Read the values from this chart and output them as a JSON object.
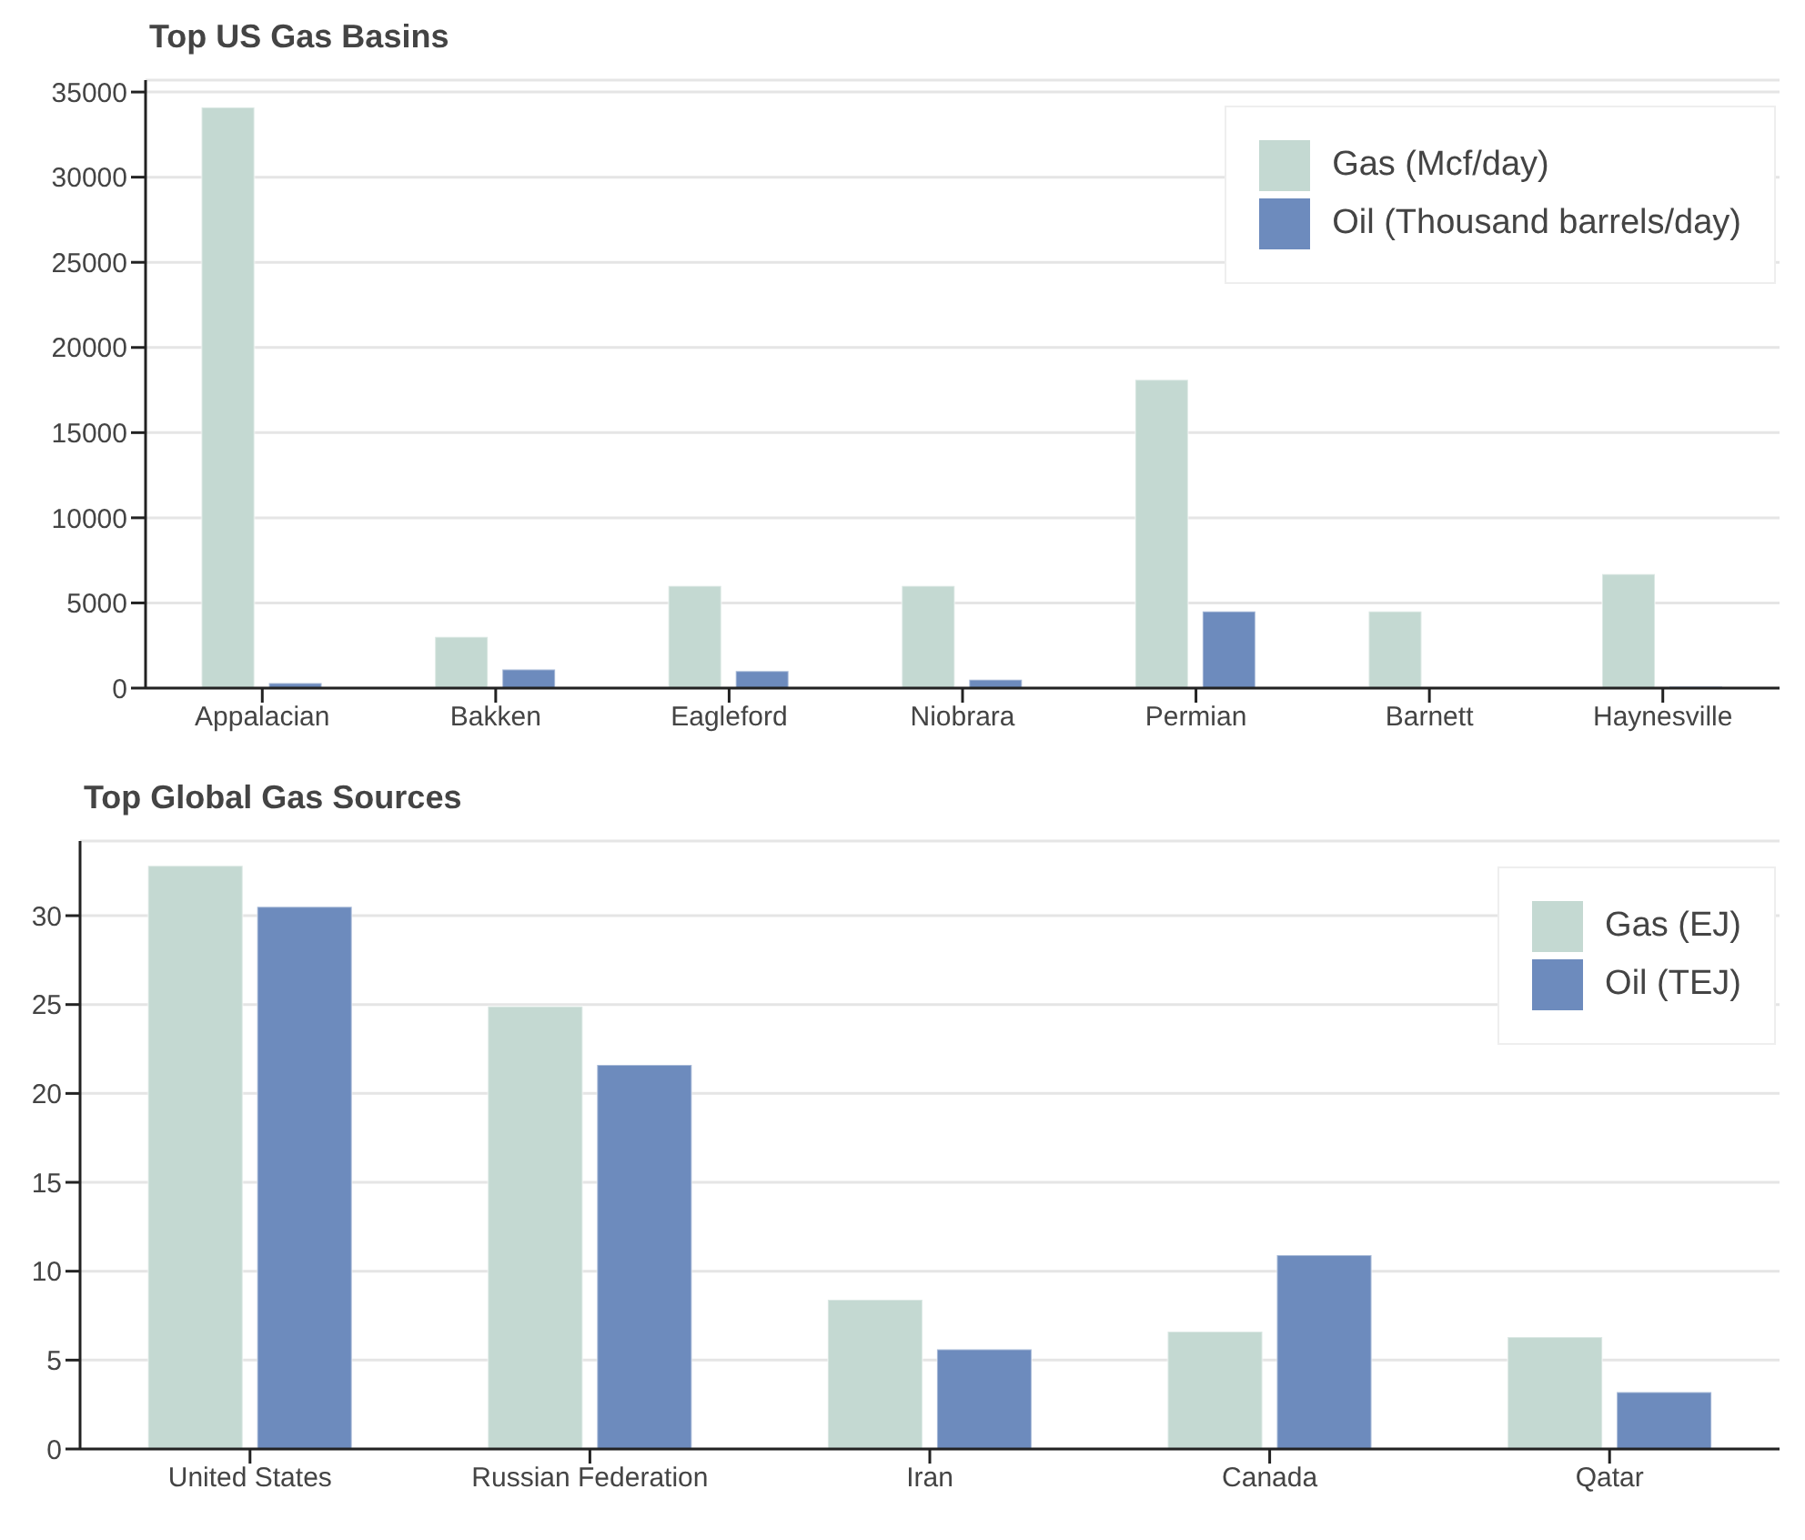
{
  "chart_data": [
    {
      "type": "bar",
      "title": "Top US Gas Basins",
      "categories": [
        "Appalacian",
        "Bakken",
        "Eagleford",
        "Niobrara",
        "Permian",
        "Barnett",
        "Haynesville"
      ],
      "series": [
        {
          "name": "Gas (Mcf/day)",
          "color": "#c4d9d2",
          "values": [
            34100,
            3000,
            6000,
            6000,
            18100,
            4500,
            6700
          ]
        },
        {
          "name": "Oil (Thousand barrels/day)",
          "color": "#6d8bbd",
          "values": [
            300,
            1100,
            1000,
            500,
            4500,
            0,
            100
          ]
        }
      ],
      "ylim": [
        0,
        35700
      ],
      "yticks": [
        0,
        5000,
        10000,
        15000,
        20000,
        25000,
        30000,
        35000
      ],
      "grid": "y",
      "legend": "top right"
    },
    {
      "type": "bar",
      "title": "Top Global Gas Sources",
      "categories": [
        "United States",
        "Russian Federation",
        "Iran",
        "Canada",
        "Qatar"
      ],
      "series": [
        {
          "name": "Gas (EJ)",
          "color": "#c4d9d2",
          "values": [
            32.8,
            24.9,
            8.4,
            6.6,
            6.3
          ]
        },
        {
          "name": "Oil (TEJ)",
          "color": "#6d8bbd",
          "values": [
            30.5,
            21.6,
            5.6,
            10.9,
            3.2
          ]
        }
      ],
      "ylim": [
        0,
        34.2
      ],
      "yticks": [
        0,
        5,
        10,
        15,
        20,
        25,
        30
      ],
      "grid": "y",
      "legend": "top right"
    }
  ]
}
